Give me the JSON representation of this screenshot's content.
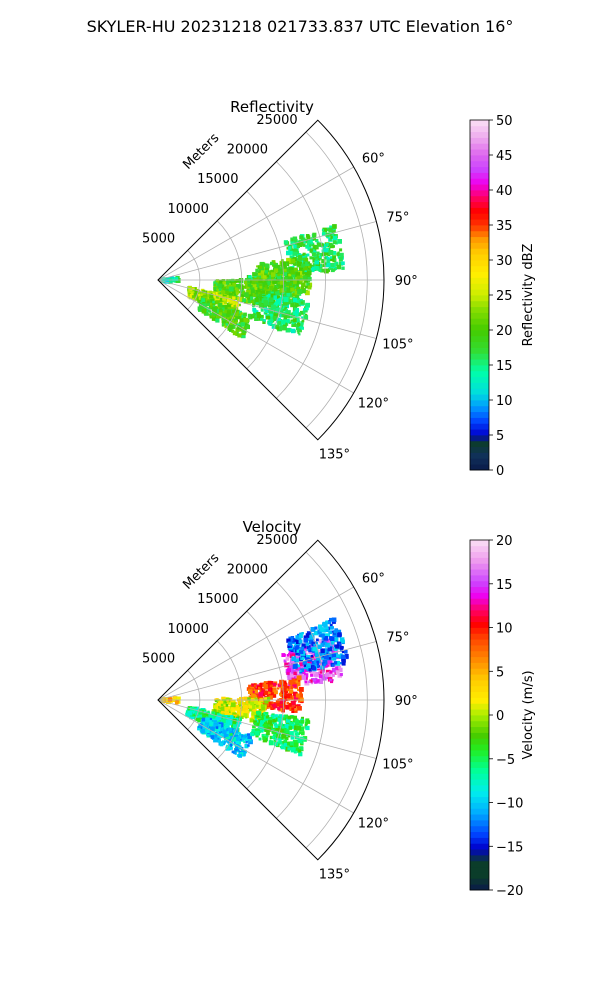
{
  "figure": {
    "title": "SKYLER-HU  20231218  021733.837 UTC Elevation 16°"
  },
  "chart_data": [
    {
      "type": "heatmap",
      "subtype": "polar-sector-ppi",
      "title": "Reflectivity",
      "radial_label": "Meters",
      "radial_ticks": [
        "5000",
        "10000",
        "15000",
        "20000",
        "25000"
      ],
      "radial_tick_values": [
        5000,
        10000,
        15000,
        20000,
        25000
      ],
      "rlim": [
        0,
        27000
      ],
      "azimuth_ticks": [
        "60°",
        "75°",
        "90°",
        "105°",
        "120°",
        "135°"
      ],
      "azimuth_tick_values": [
        60,
        75,
        90,
        105,
        120,
        135
      ],
      "azimuth_range": [
        45,
        135
      ],
      "grid": true,
      "colorbar": {
        "label": "Reflectivity dBZ",
        "range": [
          0,
          50
        ],
        "ticks": [
          "0",
          "5",
          "10",
          "15",
          "20",
          "25",
          "30",
          "35",
          "40",
          "45",
          "50"
        ],
        "tick_values": [
          0,
          5,
          10,
          15,
          20,
          25,
          30,
          35,
          40,
          45,
          50
        ]
      },
      "echo_regions": [
        {
          "az": 93,
          "r": 14000,
          "value": 18
        },
        {
          "az": 80,
          "r": 19000,
          "value": 16
        },
        {
          "az": 88,
          "r": 15000,
          "value": 20
        },
        {
          "az": 97,
          "r": 10000,
          "value": 20
        },
        {
          "az": 110,
          "r": 7000,
          "value": 24
        },
        {
          "az": 118,
          "r": 9000,
          "value": 19
        },
        {
          "az": 105,
          "r": 15000,
          "value": 16
        },
        {
          "az": 92,
          "r": 1500,
          "value": 14
        }
      ]
    },
    {
      "type": "heatmap",
      "subtype": "polar-sector-ppi",
      "title": "Velocity",
      "radial_label": "Meters",
      "radial_ticks": [
        "5000",
        "10000",
        "15000",
        "20000",
        "25000"
      ],
      "radial_tick_values": [
        5000,
        10000,
        15000,
        20000,
        25000
      ],
      "rlim": [
        0,
        27000
      ],
      "azimuth_ticks": [
        "60°",
        "75°",
        "90°",
        "105°",
        "120°",
        "135°"
      ],
      "azimuth_tick_values": [
        60,
        75,
        90,
        105,
        120,
        135
      ],
      "azimuth_range": [
        45,
        135
      ],
      "grid": true,
      "colorbar": {
        "label": "Velocity (m/s)",
        "range": [
          -20,
          20
        ],
        "ticks": [
          "−20",
          "−15",
          "−10",
          "−5",
          "0",
          "5",
          "10",
          "15",
          "20"
        ],
        "tick_values": [
          -20,
          -15,
          -10,
          -5,
          0,
          5,
          10,
          15,
          20
        ]
      },
      "echo_regions": [
        {
          "az": 77,
          "r": 19000,
          "value": 15
        },
        {
          "az": 72,
          "r": 20000,
          "value": -12
        },
        {
          "az": 88,
          "r": 14000,
          "value": 9
        },
        {
          "az": 96,
          "r": 10000,
          "value": 1
        },
        {
          "az": 110,
          "r": 7000,
          "value": -6
        },
        {
          "az": 118,
          "r": 9000,
          "value": -10
        },
        {
          "az": 104,
          "r": 15000,
          "value": -5
        },
        {
          "az": 92,
          "r": 1500,
          "value": 4
        }
      ]
    }
  ]
}
